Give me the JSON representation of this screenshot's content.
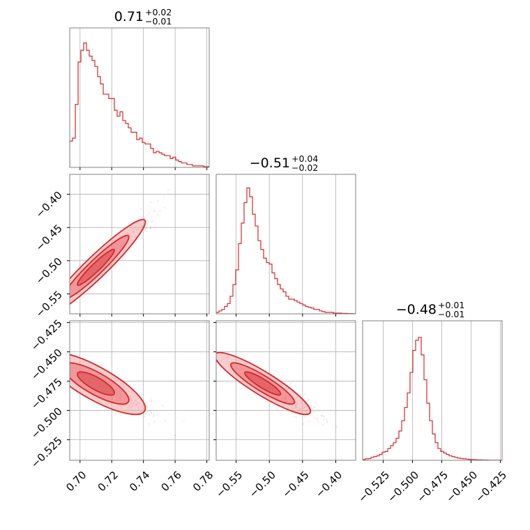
{
  "chart_data": {
    "type": "corner",
    "color": "#d62728",
    "fill_color": "#f4a6a8",
    "grid": true,
    "x_ticks": {
      "p0": [
        "0.70",
        "0.72",
        "0.74",
        "0.76",
        "0.78"
      ],
      "p1": [
        "−0.55",
        "−0.50",
        "−0.45",
        "−0.40"
      ],
      "p2": [
        "−0.525",
        "−0.500",
        "−0.475",
        "−0.450",
        "−0.425"
      ]
    },
    "y_ticks": {
      "row1": [
        "−0.40",
        "−0.45",
        "−0.50",
        "−0.55"
      ],
      "row2": [
        "−0.425",
        "−0.450",
        "−0.475",
        "−0.500",
        "−0.525"
      ]
    },
    "titles": [
      {
        "main": "0.71",
        "up": "+0.02",
        "down": "−0.01"
      },
      {
        "main": "−0.51",
        "up": "+0.04",
        "down": "−0.02"
      },
      {
        "main": "−0.48",
        "up": "+0.01",
        "down": "−0.01"
      }
    ],
    "ranges": {
      "p0": [
        0.6935,
        0.7815
      ],
      "p1": [
        -0.58,
        -0.37
      ],
      "p2": [
        -0.5425,
        -0.4235
      ]
    },
    "marginals": {
      "p0": {
        "start": 0.6935,
        "bin": 0.00176,
        "counts": [
          0.18,
          0.2,
          0.43,
          0.72,
          0.8,
          0.85,
          0.8,
          0.76,
          0.73,
          0.69,
          0.62,
          0.57,
          0.5,
          0.5,
          0.47,
          0.47,
          0.39,
          0.35,
          0.38,
          0.32,
          0.3,
          0.27,
          0.24,
          0.24,
          0.19,
          0.2,
          0.17,
          0.16,
          0.16,
          0.13,
          0.1,
          0.11,
          0.1,
          0.09,
          0.08,
          0.08,
          0.06,
          0.07,
          0.05,
          0.04,
          0.03,
          0.03,
          0.02,
          0.02,
          0.01,
          0.01,
          0.01,
          0.01,
          0.005,
          0.005
        ]
      },
      "p1": {
        "start": -0.58,
        "bin": 0.0042,
        "counts": [
          0.01,
          0.02,
          0.03,
          0.05,
          0.07,
          0.12,
          0.2,
          0.3,
          0.48,
          0.62,
          0.76,
          0.86,
          0.8,
          0.68,
          0.6,
          0.5,
          0.44,
          0.38,
          0.35,
          0.34,
          0.28,
          0.24,
          0.2,
          0.17,
          0.15,
          0.12,
          0.1,
          0.1,
          0.09,
          0.08,
          0.07,
          0.06,
          0.05,
          0.045,
          0.04,
          0.03,
          0.03,
          0.02,
          0.015,
          0.01,
          0.01,
          0.01,
          0.005,
          0.005,
          0.005,
          0.003,
          0.003,
          0.002,
          0.002,
          0.001
        ]
      },
      "p2": {
        "start": -0.5425,
        "bin": 0.00238,
        "counts": [
          0.005,
          0.01,
          0.012,
          0.02,
          0.025,
          0.03,
          0.04,
          0.055,
          0.06,
          0.08,
          0.1,
          0.12,
          0.15,
          0.2,
          0.27,
          0.36,
          0.46,
          0.6,
          0.75,
          0.82,
          0.84,
          0.72,
          0.55,
          0.39,
          0.27,
          0.18,
          0.12,
          0.08,
          0.06,
          0.05,
          0.04,
          0.03,
          0.025,
          0.02,
          0.015,
          0.012,
          0.01,
          0.008,
          0.006,
          0.005,
          0.004,
          0.003,
          0.003,
          0.002,
          0.002,
          0.001,
          0.001,
          0.001,
          0.001,
          0.001
        ]
      }
    },
    "correlations": {
      "p0_p1": {
        "mean": [
          0.71,
          -0.51
        ],
        "sd": [
          0.013,
          0.03
        ],
        "rho": 0.95
      },
      "p0_p2": {
        "mean": [
          0.71,
          -0.477
        ],
        "sd": [
          0.013,
          0.011
        ],
        "rho": -0.8
      },
      "p1_p2": {
        "mean": [
          -0.51,
          -0.477
        ],
        "sd": [
          0.03,
          0.011
        ],
        "rho": -0.9
      }
    }
  }
}
